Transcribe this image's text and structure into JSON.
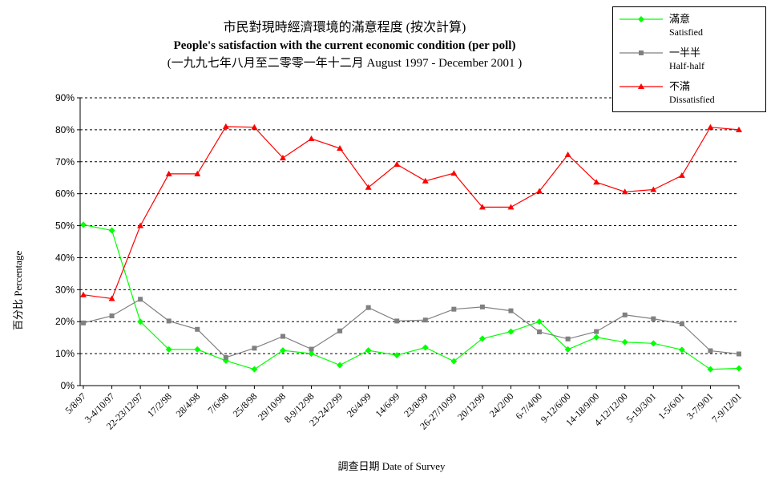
{
  "title": {
    "line1": "市民對現時經濟環境的滿意程度 (按次計算)",
    "line2": "People's satisfaction with the current economic condition  (per poll)",
    "line3": "(一九九七年八月至二零零一年十二月 August 1997 - December 2001 )"
  },
  "legend": [
    {
      "zh": "滿意",
      "en": "Satisfied",
      "color": "#00ff00",
      "marker": "diamond"
    },
    {
      "zh": "一半半",
      "en": "Half-half",
      "color": "#808080",
      "marker": "square"
    },
    {
      "zh": "不滿",
      "en": "Dissatisfied",
      "color": "#ff0000",
      "marker": "triangle"
    }
  ],
  "ylabel": "百分比 Percentage",
  "xlabel": "調查日期 Date of Survey",
  "chart_data": {
    "type": "line",
    "x": [
      "5/8/97",
      "3-4/10/97",
      "22-23/12/97",
      "17/2/98",
      "28/4/98",
      "7/6/98",
      "25/8/98",
      "29/10/98",
      "8-9/12/98",
      "23-24/2/99",
      "26/4/99",
      "14/6/99",
      "23/8/99",
      "26-27/10/99",
      "20/12/99",
      "24/2/00",
      "6-7/4/00",
      "9-12/6/00",
      "14-18/9/00",
      "4-12/12/00",
      "5-19/3/01",
      "1-5/6/01",
      "3-7/9/01",
      "7-9/12/01"
    ],
    "y_ticks": [
      "0%",
      "10%",
      "20%",
      "30%",
      "40%",
      "50%",
      "60%",
      "70%",
      "80%",
      "90%"
    ],
    "ylim": [
      0,
      90
    ],
    "grid": "horizontal dashed",
    "legend_position": "top-right",
    "series": [
      {
        "name": "Satisfied",
        "color": "#00ff00",
        "marker": "diamond",
        "values": [
          50.3,
          48.5,
          20,
          11.3,
          11.3,
          7.8,
          5.1,
          11,
          10,
          6.4,
          11,
          9.5,
          11.9,
          7.6,
          14.7,
          16.9,
          20,
          11.3,
          15.1,
          13.6,
          13.2,
          11.2,
          5.1,
          5.4
        ]
      },
      {
        "name": "Half-half",
        "color": "#808080",
        "marker": "square",
        "values": [
          19.6,
          21.8,
          27,
          20.2,
          17.6,
          8.8,
          11.7,
          15.4,
          11.4,
          17.1,
          24.4,
          20.2,
          20.5,
          23.9,
          24.6,
          23.4,
          16.8,
          14.6,
          16.9,
          22.1,
          20.9,
          19.3,
          10.9,
          9.9
        ]
      },
      {
        "name": "Dissatisfied",
        "color": "#ff0000",
        "marker": "triangle",
        "values": [
          28.4,
          27.2,
          50,
          66.2,
          66.2,
          81,
          80.8,
          71.2,
          77.2,
          74.2,
          62,
          69.2,
          64,
          66.4,
          55.8,
          55.8,
          60.8,
          72.2,
          63.6,
          60.6,
          61.3,
          65.7,
          80.8,
          80
        ]
      }
    ]
  }
}
